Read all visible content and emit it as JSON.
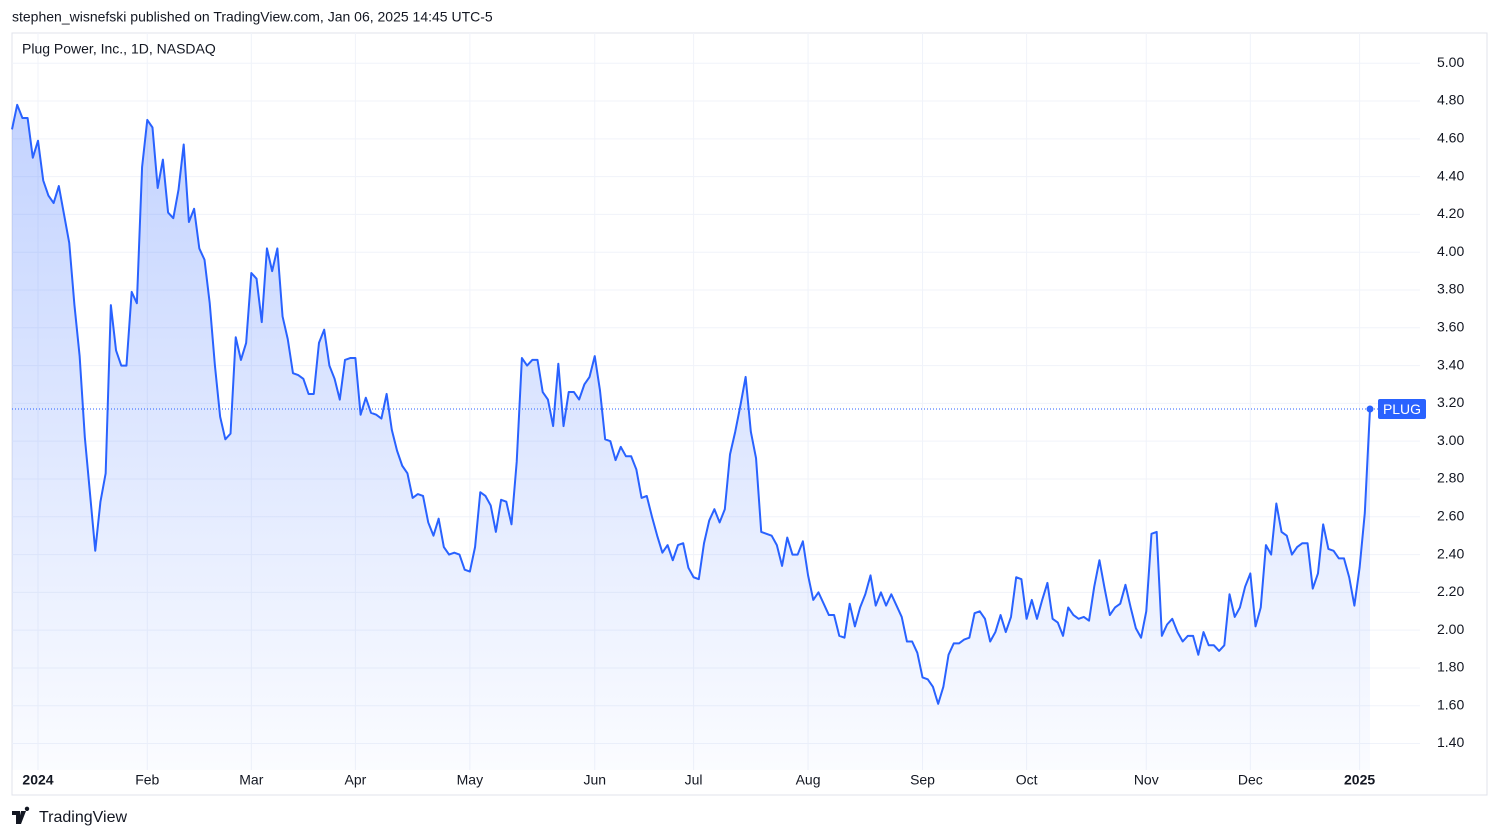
{
  "header": {
    "published": "stephen_wisnefski published on TradingView.com, Jan 06, 2025 14:45 UTC-5"
  },
  "chart_data": {
    "type": "line",
    "title": "Plug Power, Inc., 1D, NASDAQ",
    "categories": [
      null,
      null,
      null,
      null,
      null,
      "2024",
      null,
      null,
      null,
      null,
      null,
      null,
      null,
      null,
      null,
      null,
      null,
      null,
      null,
      null,
      null,
      null,
      null,
      null,
      null,
      null,
      "Feb",
      null,
      null,
      null,
      null,
      null,
      null,
      null,
      null,
      null,
      null,
      null,
      null,
      null,
      null,
      null,
      null,
      null,
      null,
      null,
      "Mar",
      null,
      null,
      null,
      null,
      null,
      null,
      null,
      null,
      null,
      null,
      null,
      null,
      null,
      null,
      null,
      null,
      null,
      null,
      null,
      "Apr",
      null,
      null,
      null,
      null,
      null,
      null,
      null,
      null,
      null,
      null,
      null,
      null,
      null,
      null,
      null,
      null,
      null,
      null,
      null,
      null,
      null,
      "May",
      null,
      null,
      null,
      null,
      null,
      null,
      null,
      null,
      null,
      null,
      null,
      null,
      null,
      null,
      null,
      null,
      null,
      null,
      null,
      null,
      null,
      null,
      null,
      "Jun",
      null,
      null,
      null,
      null,
      null,
      null,
      null,
      null,
      null,
      null,
      null,
      null,
      null,
      null,
      null,
      null,
      null,
      null,
      "Jul",
      null,
      null,
      null,
      null,
      null,
      null,
      null,
      null,
      null,
      null,
      null,
      null,
      null,
      null,
      null,
      null,
      null,
      null,
      null,
      null,
      null,
      "Aug",
      null,
      null,
      null,
      null,
      null,
      null,
      null,
      null,
      null,
      null,
      null,
      null,
      null,
      null,
      null,
      null,
      null,
      null,
      null,
      null,
      null,
      "Sep",
      null,
      null,
      null,
      null,
      null,
      null,
      null,
      null,
      null,
      null,
      null,
      null,
      null,
      null,
      null,
      null,
      null,
      null,
      null,
      "Oct",
      null,
      null,
      null,
      null,
      null,
      null,
      null,
      null,
      null,
      null,
      null,
      null,
      null,
      null,
      null,
      null,
      null,
      null,
      null,
      null,
      null,
      null,
      "Nov",
      null,
      null,
      null,
      null,
      null,
      null,
      null,
      null,
      null,
      null,
      null,
      null,
      null,
      null,
      null,
      null,
      null,
      null,
      null,
      "Dec",
      null,
      null,
      null,
      null,
      null,
      null,
      null,
      null,
      null,
      null,
      null,
      null,
      null,
      null,
      null,
      null,
      null,
      null,
      null,
      null,
      "2025",
      null,
      null
    ],
    "series": [
      {
        "name": "PLUG",
        "color": "#2962ff",
        "values": [
          4.65,
          4.78,
          4.71,
          4.71,
          4.5,
          4.59,
          4.38,
          4.3,
          4.26,
          4.35,
          4.2,
          4.05,
          3.72,
          3.45,
          3.02,
          2.72,
          2.42,
          2.68,
          2.83,
          3.72,
          3.48,
          3.4,
          3.4,
          3.79,
          3.73,
          4.45,
          4.7,
          4.66,
          4.34,
          4.49,
          4.21,
          4.18,
          4.33,
          4.57,
          4.16,
          4.23,
          4.02,
          3.96,
          3.73,
          3.4,
          3.13,
          3.01,
          3.04,
          3.55,
          3.43,
          3.52,
          3.89,
          3.86,
          3.63,
          4.02,
          3.9,
          4.02,
          3.66,
          3.54,
          3.36,
          3.35,
          3.33,
          3.25,
          3.25,
          3.52,
          3.59,
          3.4,
          3.33,
          3.22,
          3.43,
          3.44,
          3.44,
          3.14,
          3.23,
          3.15,
          3.14,
          3.12,
          3.25,
          3.06,
          2.95,
          2.87,
          2.83,
          2.7,
          2.72,
          2.71,
          2.57,
          2.5,
          2.59,
          2.44,
          2.4,
          2.41,
          2.4,
          2.32,
          2.31,
          2.44,
          2.73,
          2.71,
          2.66,
          2.52,
          2.69,
          2.68,
          2.56,
          2.89,
          3.44,
          3.4,
          3.43,
          3.43,
          3.26,
          3.22,
          3.08,
          3.41,
          3.08,
          3.26,
          3.26,
          3.22,
          3.3,
          3.34,
          3.45,
          3.27,
          3.01,
          3.0,
          2.9,
          2.97,
          2.92,
          2.92,
          2.85,
          2.7,
          2.71,
          2.6,
          2.5,
          2.41,
          2.45,
          2.37,
          2.45,
          2.46,
          2.33,
          2.28,
          2.27,
          2.46,
          2.58,
          2.64,
          2.57,
          2.64,
          2.93,
          3.05,
          3.19,
          3.34,
          3.05,
          2.91,
          2.52,
          2.51,
          2.5,
          2.45,
          2.34,
          2.49,
          2.4,
          2.4,
          2.47,
          2.29,
          2.16,
          2.2,
          2.14,
          2.08,
          2.08,
          1.97,
          1.96,
          2.14,
          2.02,
          2.12,
          2.19,
          2.29,
          2.13,
          2.2,
          2.13,
          2.19,
          2.13,
          2.07,
          1.94,
          1.94,
          1.88,
          1.75,
          1.74,
          1.7,
          1.61,
          1.7,
          1.87,
          1.93,
          1.93,
          1.95,
          1.96,
          2.09,
          2.1,
          2.06,
          1.94,
          1.99,
          2.08,
          1.99,
          2.07,
          2.28,
          2.27,
          2.06,
          2.16,
          2.06,
          2.16,
          2.25,
          2.06,
          2.04,
          1.97,
          2.12,
          2.08,
          2.06,
          2.07,
          2.05,
          2.23,
          2.37,
          2.22,
          2.08,
          2.12,
          2.14,
          2.24,
          2.12,
          2.01,
          1.96,
          2.1,
          2.51,
          2.52,
          1.97,
          2.03,
          2.06,
          1.99,
          1.94,
          1.97,
          1.97,
          1.87,
          1.99,
          1.92,
          1.92,
          1.89,
          1.92,
          2.19,
          2.07,
          2.12,
          2.23,
          2.3,
          2.02,
          2.12,
          2.45,
          2.4,
          2.67,
          2.52,
          2.5,
          2.4,
          2.44,
          2.46,
          2.46,
          2.22,
          2.3,
          2.56,
          2.43,
          2.42,
          2.38,
          2.38,
          2.28,
          2.13,
          2.33,
          2.62,
          3.17
        ]
      }
    ],
    "ylim": [
      1.26,
      5.16
    ],
    "yticks": [
      {
        "value": 1.4,
        "label": "1.40"
      },
      {
        "value": 1.6,
        "label": "1.60"
      },
      {
        "value": 1.8,
        "label": "1.80"
      },
      {
        "value": 2.0,
        "label": "2.00"
      },
      {
        "value": 2.2,
        "label": "2.20"
      },
      {
        "value": 2.4,
        "label": "2.40"
      },
      {
        "value": 2.6,
        "label": "2.60"
      },
      {
        "value": 2.8,
        "label": "2.80"
      },
      {
        "value": 3.0,
        "label": "3.00"
      },
      {
        "value": 3.2,
        "label": "3.20"
      },
      {
        "value": 3.4,
        "label": "3.40"
      },
      {
        "value": 3.6,
        "label": "3.60"
      },
      {
        "value": 3.8,
        "label": "3.80"
      },
      {
        "value": 4.0,
        "label": "4.00"
      },
      {
        "value": 4.2,
        "label": "4.20"
      },
      {
        "value": 4.4,
        "label": "4.40"
      },
      {
        "value": 4.6,
        "label": "4.60"
      },
      {
        "value": 4.8,
        "label": "4.80"
      },
      {
        "value": 5.0,
        "label": "5.00"
      }
    ],
    "grid": true
  },
  "footer": {
    "brand": "TradingView"
  }
}
